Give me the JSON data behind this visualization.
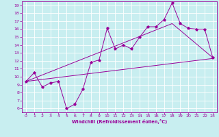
{
  "title": "",
  "xlabel": "Windchill (Refroidissement éolien,°C)",
  "ylabel": "",
  "xlim": [
    -0.5,
    23.5
  ],
  "ylim": [
    5.5,
    19.5
  ],
  "xticks": [
    0,
    1,
    2,
    3,
    4,
    5,
    6,
    7,
    8,
    9,
    10,
    11,
    12,
    13,
    14,
    15,
    16,
    17,
    18,
    19,
    20,
    21,
    22,
    23
  ],
  "yticks": [
    6,
    7,
    8,
    9,
    10,
    11,
    12,
    13,
    14,
    15,
    16,
    17,
    18,
    19
  ],
  "bg_color": "#c8eef0",
  "line_color": "#990099",
  "grid_color": "#ffffff",
  "data_x": [
    0,
    1,
    2,
    3,
    4,
    5,
    6,
    7,
    8,
    9,
    10,
    11,
    12,
    13,
    14,
    15,
    16,
    17,
    18,
    19,
    20,
    21,
    22,
    23
  ],
  "scatter_y": [
    9.4,
    10.5,
    8.7,
    9.2,
    9.4,
    6.0,
    6.5,
    8.4,
    11.8,
    12.1,
    16.1,
    13.5,
    14.0,
    13.5,
    15.0,
    16.3,
    16.3,
    17.2,
    19.3,
    16.7,
    16.1,
    16.0,
    16.0,
    12.4
  ],
  "line1_x": [
    0,
    23
  ],
  "line1_y": [
    9.4,
    12.3
  ],
  "line2_x": [
    0,
    18,
    23
  ],
  "line2_y": [
    9.4,
    16.7,
    12.4
  ]
}
